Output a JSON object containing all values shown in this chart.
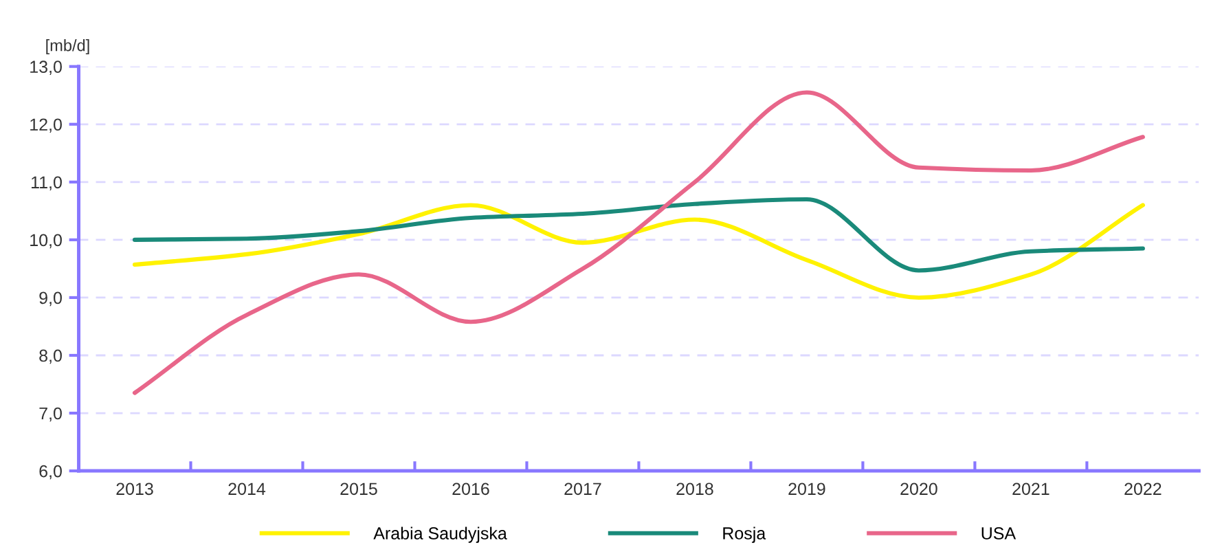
{
  "chart_data": {
    "type": "line",
    "ylabel": "[mb/d]",
    "categories": [
      "2013",
      "2014",
      "2015",
      "2016",
      "2017",
      "2018",
      "2019",
      "2020",
      "2021",
      "2022"
    ],
    "series": [
      {
        "name": "Arabia Saudyjska",
        "color": "#fff200",
        "values": [
          9.57,
          9.75,
          10.1,
          10.6,
          9.95,
          10.35,
          9.65,
          9.0,
          9.4,
          10.6
        ]
      },
      {
        "name": "Rosja",
        "color": "#1a8a7a",
        "values": [
          10.0,
          10.02,
          10.15,
          10.38,
          10.45,
          10.62,
          10.7,
          9.47,
          9.8,
          9.85
        ]
      },
      {
        "name": "USA",
        "color": "#e8668a",
        "values": [
          7.35,
          8.7,
          9.4,
          8.58,
          9.5,
          11.0,
          12.55,
          11.25,
          11.2,
          11.78
        ]
      }
    ],
    "ylim": [
      6,
      13
    ],
    "yticks": [
      {
        "value": 6,
        "label": "6,0"
      },
      {
        "value": 7,
        "label": "7,0"
      },
      {
        "value": 8,
        "label": "8,0"
      },
      {
        "value": 9,
        "label": "9,0"
      },
      {
        "value": 10,
        "label": "10,0"
      },
      {
        "value": 11,
        "label": "11,0"
      },
      {
        "value": 12,
        "label": "12,0"
      },
      {
        "value": 13,
        "label": "13,0"
      }
    ],
    "grid": "y",
    "legend": "bottom",
    "marker": "none",
    "line_style": "solid"
  }
}
